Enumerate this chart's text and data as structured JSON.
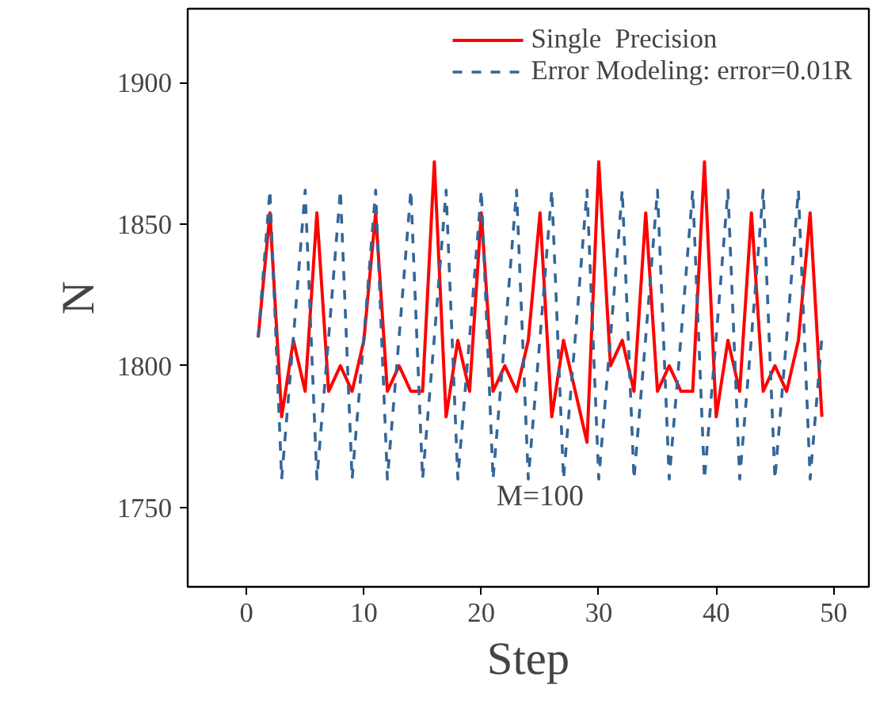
{
  "chart_data": {
    "type": "line",
    "xlabel": "Step",
    "ylabel": "N",
    "annotations": [
      "M=100"
    ],
    "x": [
      1,
      2,
      3,
      4,
      5,
      6,
      7,
      8,
      9,
      10,
      11,
      12,
      13,
      14,
      15,
      16,
      17,
      18,
      19,
      20,
      21,
      22,
      23,
      24,
      25,
      26,
      27,
      28,
      29,
      30,
      31,
      32,
      33,
      34,
      35,
      36,
      37,
      38,
      39,
      40,
      41,
      42,
      43,
      44,
      45,
      46,
      47,
      48,
      49
    ],
    "series": [
      {
        "name": "Single  Precision",
        "color": "#ff0000",
        "line_style": "solid",
        "values": [
          1810,
          1854,
          1782,
          1809,
          1791,
          1854,
          1791,
          1800,
          1791,
          1809,
          1854,
          1791,
          1800,
          1791,
          1791,
          1872,
          1782,
          1809,
          1791,
          1854,
          1791,
          1800,
          1791,
          1809,
          1854,
          1782,
          1809,
          1791,
          1773,
          1872,
          1800,
          1809,
          1791,
          1854,
          1791,
          1800,
          1791,
          1791,
          1872,
          1782,
          1809,
          1791,
          1854,
          1791,
          1800,
          1791,
          1809,
          1854,
          1782
        ]
      },
      {
        "name": "Error Modeling: error=0.01R",
        "color": "#336699",
        "line_style": "dashed",
        "values": [
          1810,
          1862,
          1760,
          1810,
          1862,
          1760,
          1810,
          1862,
          1760,
          1810,
          1862,
          1760,
          1810,
          1862,
          1760,
          1810,
          1862,
          1760,
          1810,
          1862,
          1760,
          1810,
          1862,
          1760,
          1810,
          1862,
          1760,
          1810,
          1862,
          1760,
          1810,
          1862,
          1760,
          1810,
          1862,
          1760,
          1810,
          1862,
          1760,
          1810,
          1862,
          1760,
          1810,
          1862,
          1760,
          1810,
          1862,
          1760,
          1810
        ]
      }
    ],
    "xlim": [
      -5,
      53
    ],
    "xticks": [
      0,
      10,
      20,
      30,
      40,
      50
    ],
    "ylim": [
      1722,
      1926
    ],
    "yticks": [
      1750,
      1800,
      1850,
      1900
    ],
    "grid": false,
    "legend": "top right",
    "marker": "none"
  }
}
